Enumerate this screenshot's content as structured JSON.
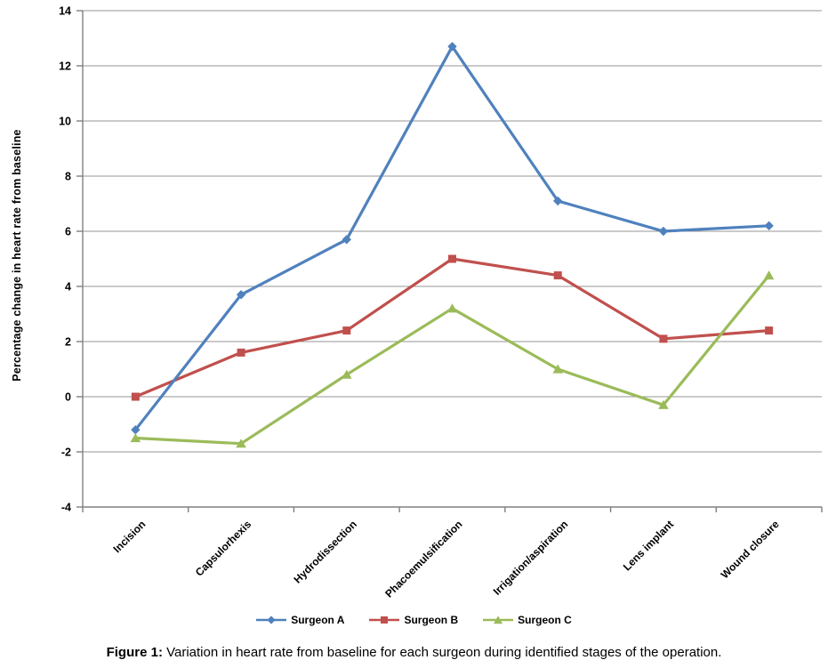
{
  "chart_data": {
    "type": "line",
    "title": "",
    "categories": [
      "Incision",
      "Capsulorhexis",
      "Hydrodissection",
      "Phacoemulsification",
      "Irrigation/aspiration",
      "Lens implant",
      "Wound closure"
    ],
    "series": [
      {
        "name": "Surgeon A",
        "marker": "diamond",
        "color": "#4F81BD",
        "values": [
          -1.2,
          3.7,
          5.7,
          12.7,
          7.1,
          6.0,
          6.2
        ]
      },
      {
        "name": "Surgeon B",
        "marker": "square",
        "color": "#C0504D",
        "values": [
          0.0,
          1.6,
          2.4,
          5.0,
          4.4,
          2.1,
          2.4
        ]
      },
      {
        "name": "Surgeon C",
        "marker": "triangle",
        "color": "#9BBB59",
        "values": [
          -1.5,
          -1.7,
          0.8,
          3.2,
          1.0,
          -0.3,
          4.4
        ]
      }
    ],
    "xlabel": "",
    "ylabel": "Percentage change in heart rate from baseline",
    "ylim": [
      -4,
      14
    ],
    "yticks": [
      -4,
      -2,
      0,
      2,
      4,
      6,
      8,
      10,
      12,
      14
    ],
    "grid": true,
    "legend_position": "bottom",
    "colors": {
      "grid": "#969696",
      "axis": "#808080",
      "text": "#000000"
    }
  },
  "caption": {
    "prefix": "Figure 1:",
    "text": "Variation in heart rate from baseline for each surgeon during identified stages of the operation."
  }
}
